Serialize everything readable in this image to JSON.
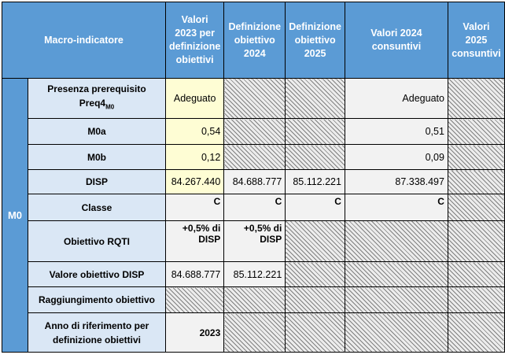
{
  "header": {
    "macro": "Macro-indicatore",
    "col1": [
      "Valori",
      "2023 per",
      "definizione",
      "obiettivi"
    ],
    "col2": [
      "Definizione",
      "obiettivo",
      "2024"
    ],
    "col3": [
      "Definizione",
      "obiettivo",
      "2025"
    ],
    "col4": [
      "Valori 2024",
      "consuntivi"
    ],
    "col5": [
      "Valori",
      "2025",
      "consuntivi"
    ]
  },
  "group_label": "M0",
  "rows": {
    "preq": {
      "label_line1": "Presenza prerequisito",
      "label_main": "Preq4",
      "label_sub": "M0",
      "v2023": "Adeguato",
      "v2024c": "Adeguato"
    },
    "m0a": {
      "label": "M0a",
      "v2023": "0,54",
      "v2024c": "0,51"
    },
    "m0b": {
      "label": "M0b",
      "v2023": "0,12",
      "v2024c": "0,09"
    },
    "disp": {
      "label": "DISP",
      "v2023": "84.267.440",
      "ob2024": "84.688.777",
      "ob2025": "85.112.221",
      "v2024c": "87.338.497"
    },
    "classe": {
      "label": "Classe",
      "v2023": "C",
      "ob2024": "C",
      "ob2025": "C",
      "v2024c": "C"
    },
    "rqti": {
      "label": "Obiettivo RQTI",
      "v2023": [
        "+0,5% di",
        "DISP"
      ],
      "ob2024": [
        "+0,5% di",
        "DISP"
      ]
    },
    "valob": {
      "label": "Valore obiettivo DISP",
      "v2023": "84.688.777",
      "ob2024": "85.112.221"
    },
    "ragg": {
      "label": "Raggiungimento obiettivo"
    },
    "anno": {
      "label": [
        "Anno di riferimento per",
        "definizione obiettivi"
      ],
      "v2023": "2023"
    }
  }
}
